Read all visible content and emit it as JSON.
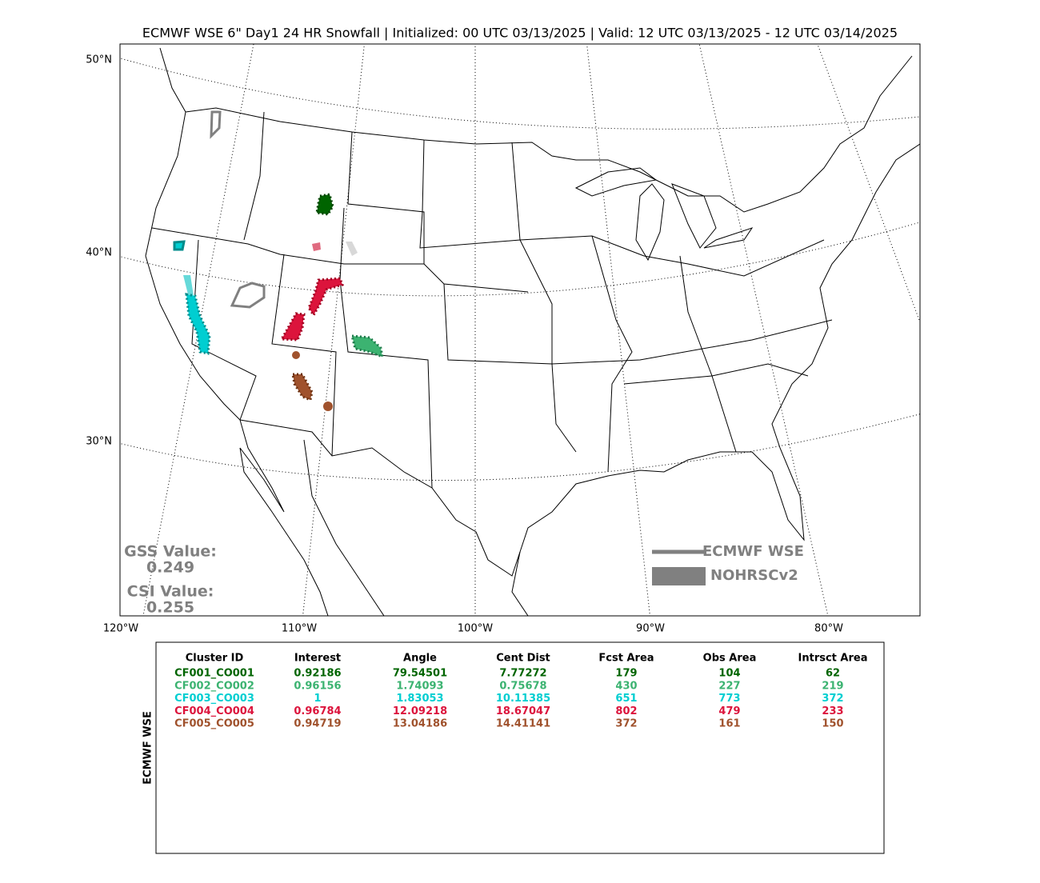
{
  "title": "ECMWF WSE 6\" Day1 24 HR Snowfall | Initialized: 00 UTC 03/13/2025 | Valid: 12 UTC 03/13/2025 - 12 UTC 03/14/2025",
  "map": {
    "lat_labels": [
      "50°N",
      "40°N",
      "30°N"
    ],
    "lon_labels": [
      "120°W",
      "110°W",
      "100°W",
      "90°W",
      "80°W"
    ],
    "legend": [
      "ECMWF WSE",
      "NOHRSCv2"
    ],
    "scores": {
      "gss_label": "GSS Value:",
      "gss": "0.249",
      "csi_label": "CSI Value:",
      "csi": "0.255"
    }
  },
  "table": {
    "side_label": "ECMWF WSE",
    "header": [
      "Cluster ID",
      "Interest",
      "Angle",
      "Cent Dist",
      "Fcst Area",
      "Obs Area",
      "Intrsct Area"
    ],
    "rows": [
      [
        "CF001_CO001",
        0.92186,
        79.54501,
        7.77272,
        179,
        104,
        62
      ],
      [
        "CF002_CO002",
        0.96156,
        1.74093,
        0.75678,
        430,
        227,
        219
      ],
      [
        "CF003_CO003",
        1,
        1.83053,
        10.11385,
        651,
        773,
        372
      ],
      [
        "CF004_CO004",
        0.96784,
        12.09218,
        18.67047,
        802,
        479,
        233
      ],
      [
        "CF005_CO005",
        0.94719,
        13.04186,
        14.41141,
        372,
        161,
        150
      ]
    ],
    "row_colors": [
      "#006400",
      "#3cb371",
      "#00ced1",
      "#dc143c",
      "#a0522d"
    ]
  }
}
